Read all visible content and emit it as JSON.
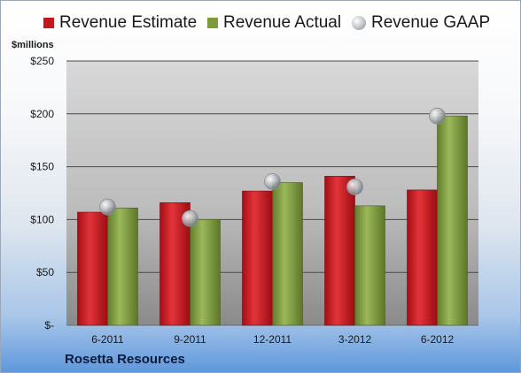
{
  "colors": {
    "estimate": "#c8161d",
    "actual": "#7e9b3b",
    "gaap": "#a9adb3",
    "plot_bg_top": "#d7d7d7",
    "plot_bg_bottom": "#8a8a8a"
  },
  "legend": {
    "estimate_label": "Revenue Estimate",
    "actual_label": "Revenue Actual",
    "gaap_label": "Revenue GAAP"
  },
  "unit_label": "$millions",
  "company": "Rosetta Resources",
  "chart_data": {
    "type": "bar",
    "categories": [
      "6-2011",
      "9-2011",
      "12-2011",
      "3-2012",
      "6-2012"
    ],
    "series": [
      {
        "name": "Revenue Estimate",
        "kind": "bar",
        "values": [
          107,
          116,
          127,
          141,
          128
        ]
      },
      {
        "name": "Revenue Actual",
        "kind": "bar",
        "values": [
          111,
          100,
          135,
          113,
          198
        ]
      },
      {
        "name": "Revenue GAAP",
        "kind": "marker",
        "values": [
          112,
          101,
          136,
          131,
          198
        ]
      }
    ],
    "ylabel": "$millions",
    "ylim": [
      0,
      250
    ],
    "yticks": [
      0,
      50,
      100,
      150,
      200,
      250
    ],
    "ytick_labels": [
      "$-",
      "$50",
      "$100",
      "$150",
      "$200",
      "$250"
    ],
    "grid": true,
    "legend_position": "top"
  }
}
